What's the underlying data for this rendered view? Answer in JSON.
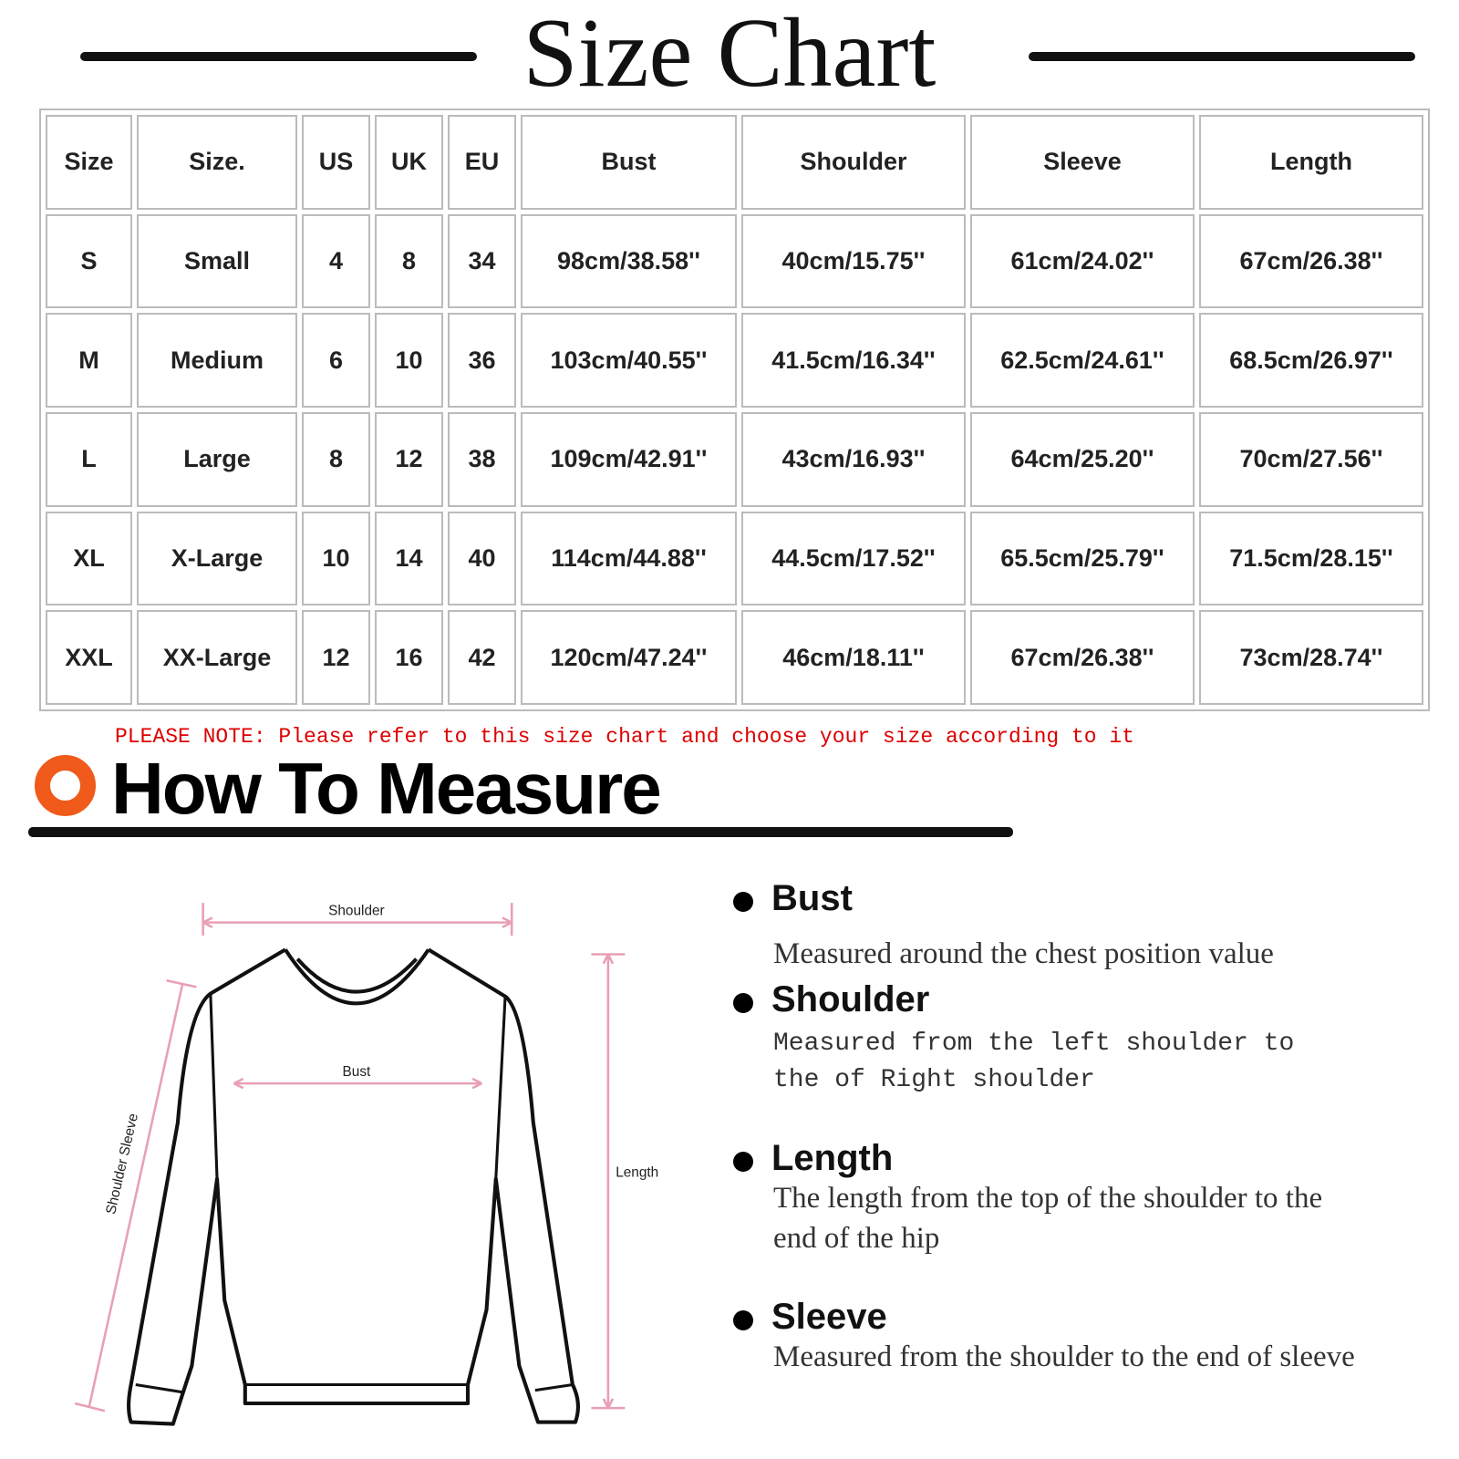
{
  "header": {
    "title": "Size Chart"
  },
  "table": {
    "columns": [
      "Size",
      "Size.",
      "US",
      "UK",
      "EU",
      "Bust",
      "Shoulder",
      "Sleeve",
      "Length"
    ],
    "rows": [
      [
        "S",
        "Small",
        "4",
        "8",
        "34",
        "98cm/38.58''",
        "40cm/15.75''",
        "61cm/24.02''",
        "67cm/26.38''"
      ],
      [
        "M",
        "Medium",
        "6",
        "10",
        "36",
        "103cm/40.55''",
        "41.5cm/16.34''",
        "62.5cm/24.61''",
        "68.5cm/26.97''"
      ],
      [
        "L",
        "Large",
        "8",
        "12",
        "38",
        "109cm/42.91''",
        "43cm/16.93''",
        "64cm/25.20''",
        "70cm/27.56''"
      ],
      [
        "XL",
        "X-Large",
        "10",
        "14",
        "40",
        "114cm/44.88''",
        "44.5cm/17.52''",
        "65.5cm/25.79''",
        "71.5cm/28.15''"
      ],
      [
        "XXL",
        "XX-Large",
        "12",
        "16",
        "42",
        "120cm/47.24''",
        "46cm/18.11''",
        "67cm/26.38''",
        "73cm/28.74''"
      ]
    ]
  },
  "note": "PLEASE NOTE: Please refer to this size chart and choose your size according to it",
  "measure": {
    "title": "How To Measure",
    "diagram": {
      "shoulder": "Shoulder",
      "bust": "Bust",
      "length": "Length",
      "sleeve": "Shoulder Sleeve"
    },
    "items": [
      {
        "name": "Bust",
        "description": "Measured around the chest position value"
      },
      {
        "name": "Shoulder",
        "description": "Measured from the left shoulder to the of Right shoulder"
      },
      {
        "name": "Length",
        "description": "The length from the top of the shoulder to the end of the hip"
      },
      {
        "name": "Sleeve",
        "description": "Measured from the shoulder to the end of sleeve"
      }
    ]
  }
}
